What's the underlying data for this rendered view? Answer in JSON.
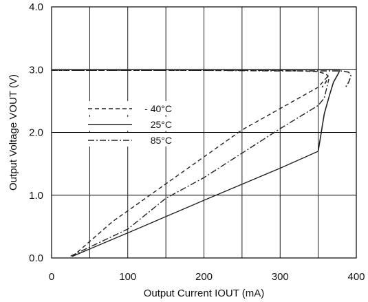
{
  "chart_data": {
    "type": "line",
    "xlabel": "Output Current IOUT (mA)",
    "ylabel": "Output Voltage VOUT (V)",
    "xlim": [
      0,
      400
    ],
    "ylim": [
      0,
      4
    ],
    "x_ticks": [
      0,
      100,
      200,
      300,
      400
    ],
    "x_tick_labels": [
      "0",
      "100",
      "200",
      "300",
      "400"
    ],
    "y_ticks": [
      0,
      1,
      2,
      3,
      4
    ],
    "y_tick_labels": [
      "0.0",
      "1.0",
      "2.0",
      "3.0",
      "4.0"
    ],
    "grid": true,
    "x_grid_step": 50,
    "y_grid_step": 1,
    "legend_placement": "center-left",
    "series": [
      {
        "name": "- 40°C",
        "style": "dashed",
        "color": "#222222",
        "x": [
          0,
          100,
          200,
          300,
          350,
          360,
          363,
          360,
          355
        ],
        "y": [
          2.99,
          2.99,
          2.99,
          2.99,
          2.97,
          2.93,
          2.9,
          2.8,
          2.72
        ],
        "foldback": {
          "x": [
            27,
            80,
            150,
            250,
            350,
            363
          ],
          "y": [
            0.02,
            0.58,
            1.18,
            2.04,
            2.72,
            2.9
          ]
        }
      },
      {
        "name": "25°C",
        "style": "solid",
        "color": "#222222",
        "x": [
          0,
          100,
          200,
          300,
          370,
          378,
          377,
          370,
          365,
          358,
          350
        ],
        "y": [
          3.0,
          3.0,
          3.0,
          3.0,
          3.0,
          3.0,
          2.95,
          2.8,
          2.6,
          2.3,
          1.7
        ],
        "foldback": {
          "x": [
            28,
            110,
            200,
            300,
            350
          ],
          "y": [
            0.03,
            0.45,
            0.92,
            1.43,
            1.7
          ]
        }
      },
      {
        "name": "85°C",
        "style": "dashdot",
        "color": "#222222",
        "x": [
          0,
          100,
          200,
          300,
          380,
          390,
          393,
          390,
          385
        ],
        "y": [
          2.99,
          2.99,
          2.99,
          2.98,
          2.98,
          2.96,
          2.9,
          2.8,
          2.7
        ],
        "foldback": {
          "x": [
            25,
            100,
            150,
            200,
            300,
            350,
            358,
            364
          ],
          "y": [
            0.03,
            0.46,
            0.95,
            1.28,
            2.06,
            2.43,
            2.55,
            2.85
          ]
        }
      }
    ]
  }
}
